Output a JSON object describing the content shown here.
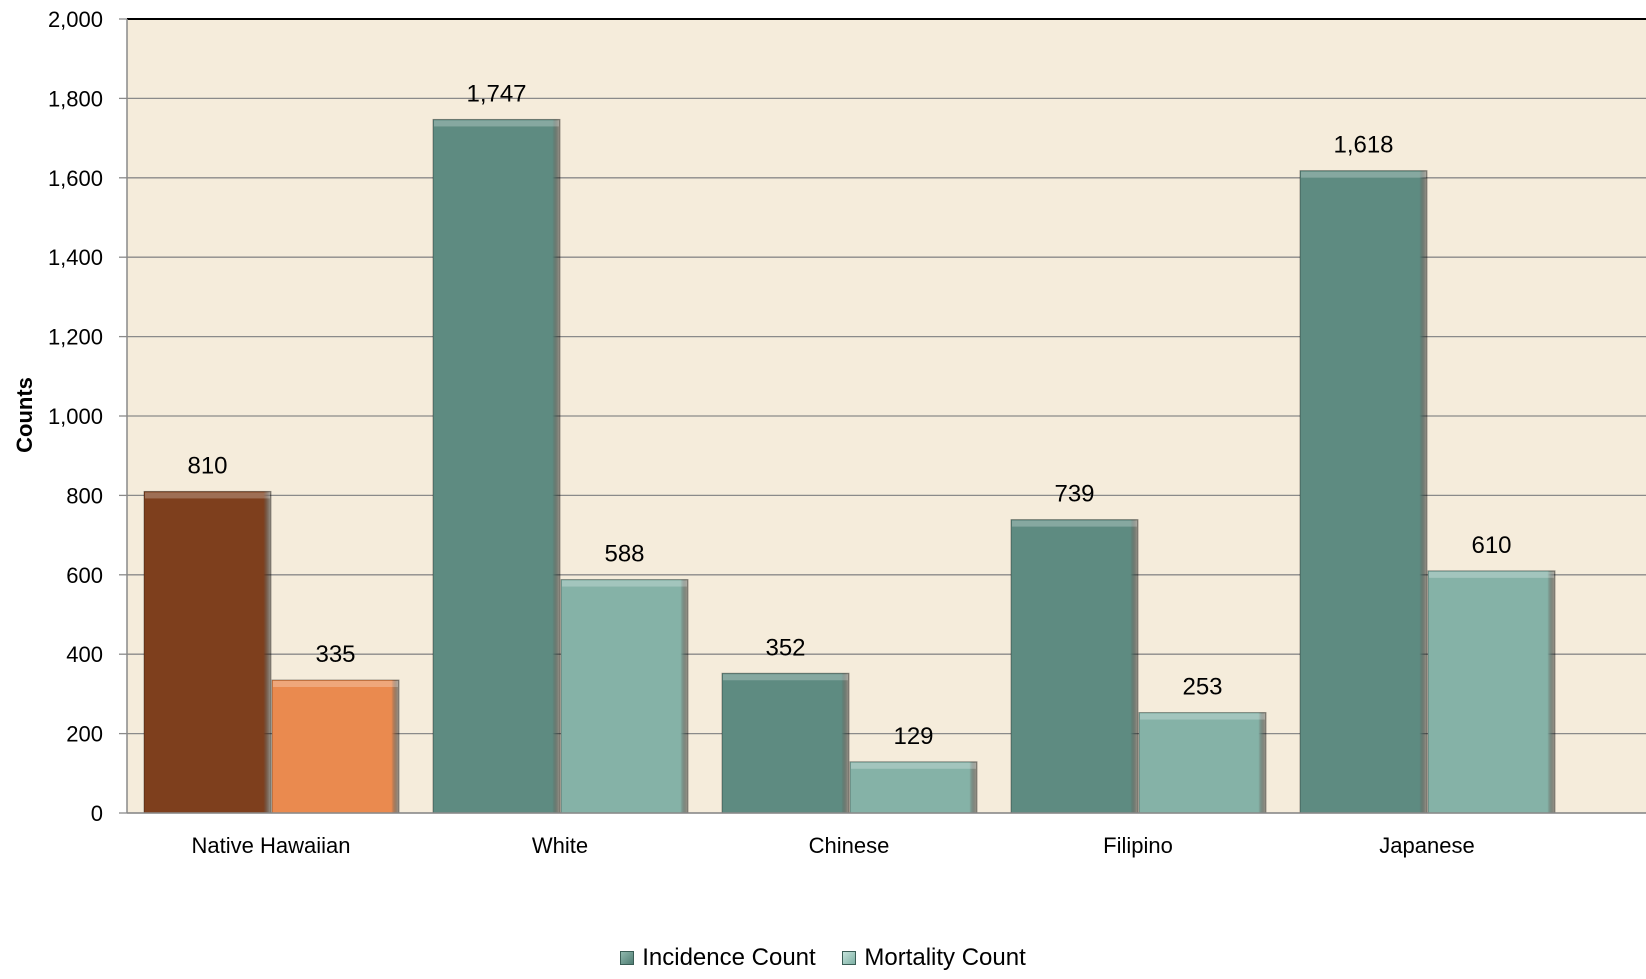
{
  "chart_data": {
    "type": "bar",
    "categories": [
      "Native Hawaiian",
      "White",
      "Chinese",
      "Filipino",
      "Japanese"
    ],
    "series": [
      {
        "name": "Incidence Count",
        "values": [
          810,
          1747,
          352,
          739,
          1618
        ],
        "labels": [
          "810",
          "1,747",
          "352",
          "739",
          "1,618"
        ],
        "color": "#5e8b81"
      },
      {
        "name": "Mortality Count",
        "values": [
          335,
          588,
          129,
          253,
          610
        ],
        "labels": [
          "335",
          "588",
          "129",
          "253",
          "610"
        ],
        "color": "#85b2a7"
      }
    ],
    "highlight": {
      "category_index": 0,
      "colors": [
        "#7e3f1d",
        "#ea8a4f"
      ]
    },
    "ylabel": "Counts",
    "xlabel": "",
    "ylim": [
      0,
      2000
    ],
    "yticks": [
      0,
      200,
      400,
      600,
      800,
      1000,
      1200,
      1400,
      1600,
      1800,
      2000
    ],
    "ytick_labels": [
      "0",
      "200",
      "400",
      "600",
      "800",
      "1,000",
      "1,200",
      "1,400",
      "1,600",
      "1,800",
      "2,000"
    ],
    "grid": true,
    "legend": "bottom",
    "plot_background": "#f5ecdb"
  },
  "legend": {
    "incidence_label": "Incidence Count",
    "mortality_label": "Mortality Count"
  }
}
